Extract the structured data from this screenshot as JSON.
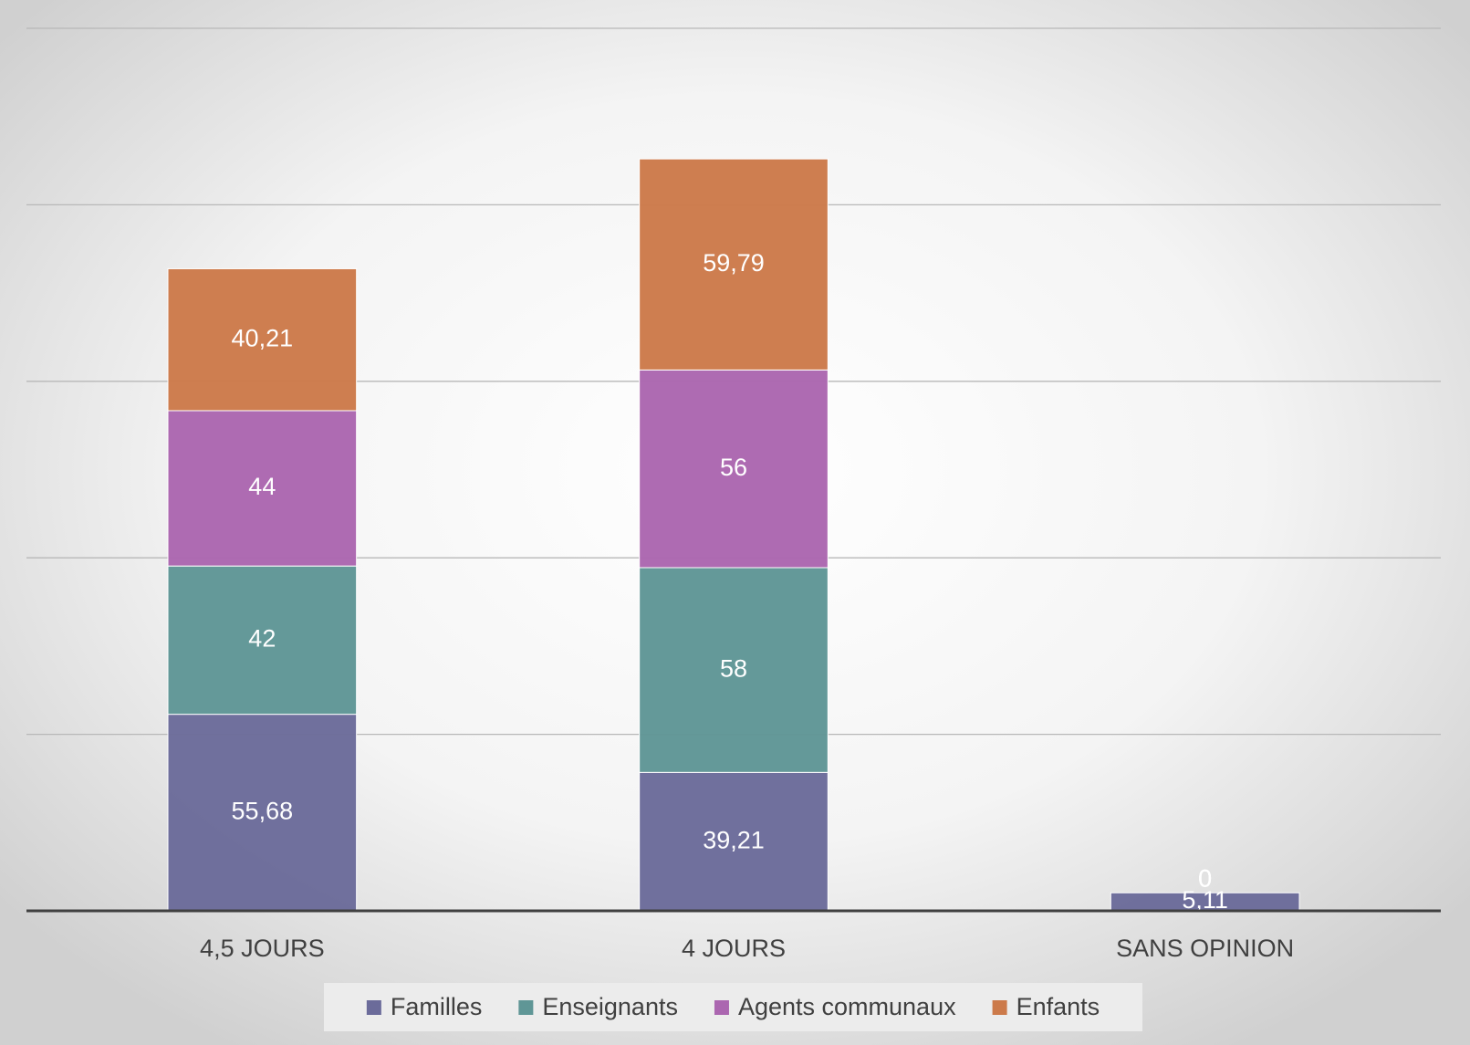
{
  "chart_data": {
    "type": "stacked_bar",
    "categories": [
      "4,5 JOURS",
      "4 JOURS",
      "SANS OPINION"
    ],
    "series": [
      {
        "name": "Familles",
        "color": "#6b6b9a",
        "values": [
          55.68,
          39.21,
          5.11
        ],
        "value_labels": [
          "55,68",
          "39,21",
          "5,11"
        ]
      },
      {
        "name": "Enseignants",
        "color": "#5f9696",
        "values": [
          42,
          58,
          0
        ],
        "value_labels": [
          "42",
          "58",
          "0"
        ]
      },
      {
        "name": "Agents communaux",
        "color": "#ab66b0",
        "values": [
          44,
          56,
          0
        ],
        "value_labels": [
          "44",
          "56",
          "0"
        ]
      },
      {
        "name": "Enfants",
        "color": "#cc7a4a",
        "values": [
          40.21,
          59.79,
          0
        ],
        "value_labels": [
          "40,21",
          "59,79",
          "0"
        ]
      }
    ],
    "ylim": [
      0,
      250
    ],
    "yticks": [
      0,
      50,
      100,
      150,
      200,
      250
    ],
    "grid": true,
    "legend": "bottom"
  }
}
